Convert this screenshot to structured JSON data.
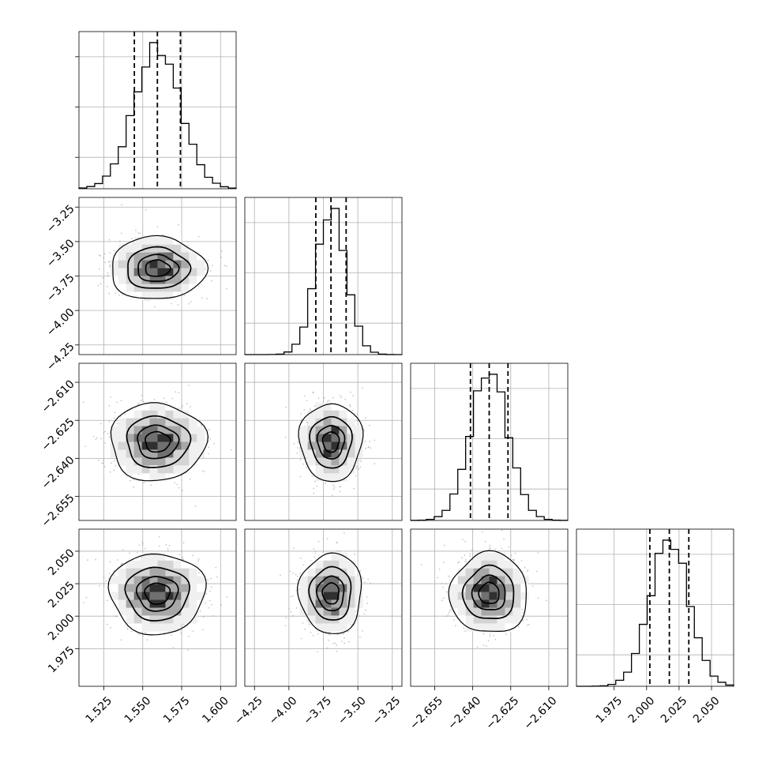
{
  "chart_data": {
    "type": "corner",
    "parameters": [
      {
        "range": [
          1.509,
          1.61
        ],
        "ticks": [
          "1.525",
          "1.550",
          "1.575",
          "1.600"
        ],
        "tick_values": [
          1.525,
          1.55,
          1.575,
          1.6
        ],
        "quantiles": [
          1.5446,
          1.5594,
          1.5742
        ],
        "mean": 1.5594,
        "sd": 0.0148,
        "hist_peak": 0.93
      },
      {
        "range": [
          -4.32,
          -3.18
        ],
        "ticks": [
          "−4.25",
          "−4.00",
          "−3.75",
          "−3.50",
          "−3.25"
        ],
        "tick_values": [
          -4.25,
          -4.0,
          -3.75,
          -3.5,
          -3.25
        ],
        "quantiles": [
          -3.805,
          -3.695,
          -3.585
        ],
        "mean": -3.695,
        "sd": 0.11,
        "hist_peak": 0.93
      },
      {
        "range": [
          -2.6645,
          -2.6025
        ],
        "ticks": [
          "−2.655",
          "−2.640",
          "−2.625",
          "−2.610"
        ],
        "tick_values": [
          -2.655,
          -2.64,
          -2.625,
          -2.61
        ],
        "quantiles": [
          -2.6409,
          -2.6335,
          -2.6261
        ],
        "mean": -2.6335,
        "sd": 0.0074,
        "hist_peak": 0.93
      },
      {
        "range": [
          1.946,
          2.067
        ],
        "ticks": [
          "1.975",
          "2.000",
          "2.025",
          "2.050"
        ],
        "tick_values": [
          1.975,
          2.0,
          2.025,
          2.05
        ],
        "quantiles": [
          2.0025,
          2.0175,
          2.0325
        ],
        "mean": 2.0175,
        "sd": 0.015,
        "hist_peak": 0.93
      }
    ],
    "y_tick_rows": [
      1,
      2,
      3
    ],
    "x_tick_cols": [
      0,
      1,
      2,
      3
    ],
    "contour_levels_sigma": [
      0.5,
      1.0,
      1.5,
      2.0
    ],
    "grid": true,
    "style": {
      "line_color": "#000000",
      "grid_color": "#b0b0b0",
      "point_color": "#9a9a9a",
      "density_colors": [
        "#ffffff",
        "#f0f0f0",
        "#d4d4d4",
        "#a8a8a8",
        "#707070",
        "#303030"
      ]
    }
  }
}
